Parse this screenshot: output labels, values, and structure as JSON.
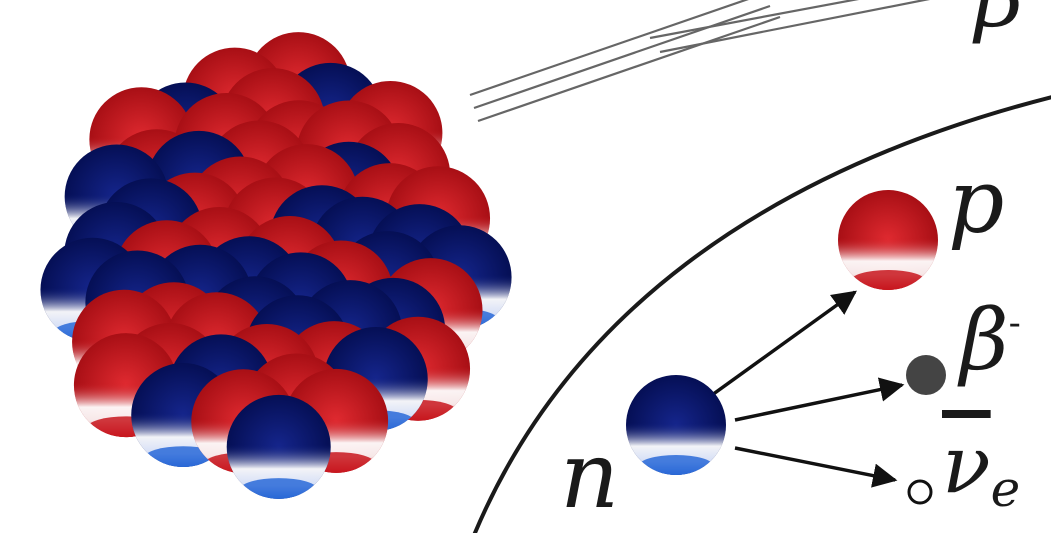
{
  "diagram": {
    "labels": {
      "neutron": "n",
      "proton": "p",
      "beta": "β",
      "beta_charge": "-",
      "beta_top": "β",
      "antineutrino": "ν",
      "antineutrino_sub": "e"
    },
    "colors": {
      "proton_red": "#c8161d",
      "neutron_blue": "#0a1a78",
      "electron_gray": "#444444",
      "line": "#222222"
    },
    "nucleus_particles": [
      {
        "c": "r"
      },
      {
        "c": "b"
      },
      {
        "c": "r"
      },
      {
        "c": "b"
      },
      {
        "c": "r"
      },
      {
        "c": "b"
      },
      {
        "c": "b"
      },
      {
        "c": "r"
      },
      {
        "c": "r"
      },
      {
        "c": "b"
      },
      {
        "c": "r"
      },
      {
        "c": "b"
      },
      {
        "c": "r"
      },
      {
        "c": "b"
      },
      {
        "c": "r"
      },
      {
        "c": "r"
      },
      {
        "c": "b"
      },
      {
        "c": "r"
      },
      {
        "c": "b"
      },
      {
        "c": "r"
      },
      {
        "c": "b"
      },
      {
        "c": "b"
      },
      {
        "c": "r"
      },
      {
        "c": "r"
      },
      {
        "c": "r"
      },
      {
        "c": "b"
      },
      {
        "c": "r"
      },
      {
        "c": "b"
      },
      {
        "c": "r"
      },
      {
        "c": "b"
      },
      {
        "c": "b"
      },
      {
        "c": "r"
      },
      {
        "c": "r"
      },
      {
        "c": "r"
      },
      {
        "c": "b"
      },
      {
        "c": "r"
      },
      {
        "c": "r"
      },
      {
        "c": "b"
      },
      {
        "c": "b"
      },
      {
        "c": "r"
      },
      {
        "c": "r"
      },
      {
        "c": "b"
      },
      {
        "c": "r"
      },
      {
        "c": "r"
      },
      {
        "c": "b"
      },
      {
        "c": "r"
      },
      {
        "c": "b"
      },
      {
        "c": "r"
      },
      {
        "c": "b"
      },
      {
        "c": "r"
      },
      {
        "c": "r"
      },
      {
        "c": "b"
      },
      {
        "c": "r"
      },
      {
        "c": "b"
      },
      {
        "c": "r"
      },
      {
        "c": "b"
      },
      {
        "c": "r"
      },
      {
        "c": "r"
      }
    ]
  }
}
